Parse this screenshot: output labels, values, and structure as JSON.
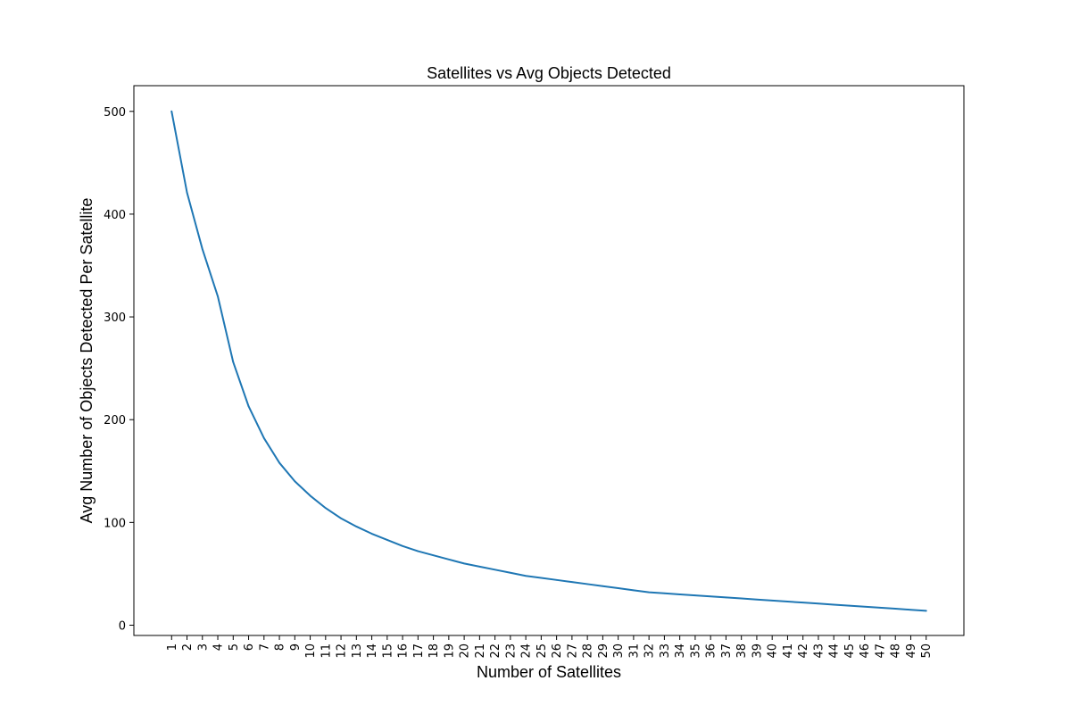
{
  "chart_data": {
    "type": "line",
    "title": "Satellites vs Avg Objects Detected",
    "xlabel": "Number of Satellites",
    "ylabel": "Avg Number of Objects Detected Per Satellite",
    "x": [
      1,
      2,
      3,
      4,
      5,
      6,
      7,
      8,
      9,
      10,
      11,
      12,
      13,
      14,
      15,
      16,
      17,
      18,
      19,
      20,
      21,
      22,
      23,
      24,
      25,
      26,
      27,
      28,
      29,
      30,
      31,
      32,
      33,
      34,
      35,
      36,
      37,
      38,
      39,
      40,
      41,
      42,
      43,
      44,
      45,
      46,
      47,
      48,
      49,
      50
    ],
    "series": [
      {
        "name": "",
        "color": "#1f77b4",
        "values": [
          500,
          421,
          366,
          320,
          256,
          213,
          182,
          158,
          140,
          126,
          114,
          104,
          96,
          89,
          83,
          77,
          72,
          68,
          64,
          60,
          57,
          54,
          51,
          48,
          46,
          44,
          42,
          40,
          38,
          36,
          34,
          32,
          31,
          30,
          29,
          28,
          27,
          26,
          25,
          24,
          23,
          22,
          21,
          20,
          19,
          18,
          17,
          16,
          15,
          14
        ]
      }
    ],
    "yticks": [
      0,
      100,
      200,
      300,
      400,
      500
    ],
    "xlim": [
      -1.45,
      52.45
    ],
    "ylim": [
      -10,
      525
    ],
    "grid": false,
    "legend": "none"
  }
}
